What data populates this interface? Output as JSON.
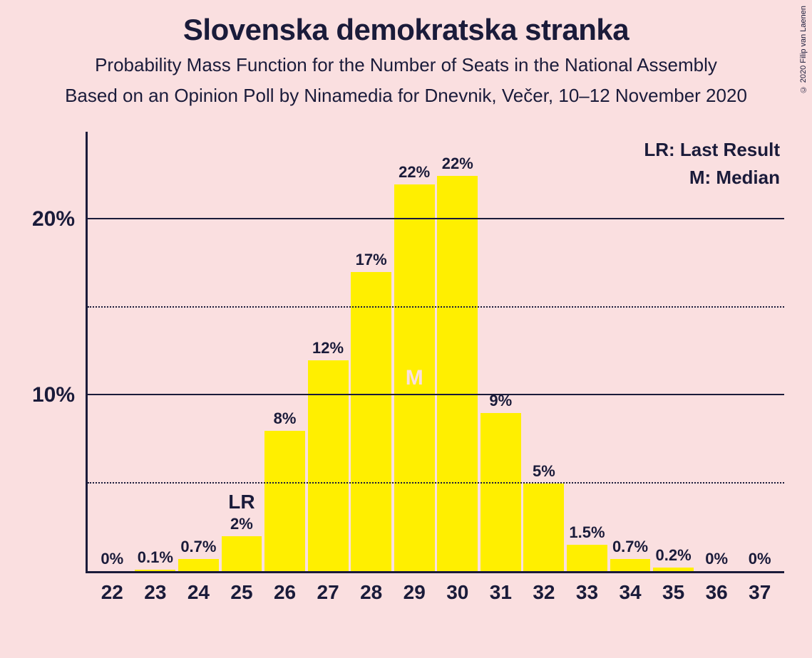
{
  "title": "Slovenska demokratska stranka",
  "subtitle1": "Probability Mass Function for the Number of Seats in the National Assembly",
  "subtitle2": "Based on an Opinion Poll by Ninamedia for Dnevnik, Večer, 10–12 November 2020",
  "copyright": "© 2020 Filip van Laenen",
  "legend": {
    "lr": "LR: Last Result",
    "m": "M: Median"
  },
  "chart": {
    "type": "bar",
    "bar_color": "#ffef00",
    "background": "#fadfe0",
    "axis_color": "#1a1b3a",
    "text_color": "#1a1b3a",
    "median_text_color": "#fadfe0",
    "ymax_pct": 25,
    "ytick_major": [
      10,
      20
    ],
    "ytick_minor": [
      5,
      15
    ],
    "ytick_labels": {
      "10": "10%",
      "20": "20%"
    },
    "lr_marker": {
      "x": 25,
      "label": "LR"
    },
    "median_marker": {
      "x": 29,
      "label": "M"
    },
    "bars": [
      {
        "x": 22,
        "pct": 0,
        "label": "0%"
      },
      {
        "x": 23,
        "pct": 0.1,
        "label": "0.1%"
      },
      {
        "x": 24,
        "pct": 0.7,
        "label": "0.7%"
      },
      {
        "x": 25,
        "pct": 2,
        "label": "2%"
      },
      {
        "x": 26,
        "pct": 8,
        "label": "8%"
      },
      {
        "x": 27,
        "pct": 12,
        "label": "12%"
      },
      {
        "x": 28,
        "pct": 17,
        "label": "17%"
      },
      {
        "x": 29,
        "pct": 22,
        "label": "22%"
      },
      {
        "x": 30,
        "pct": 22.5,
        "label": "22%"
      },
      {
        "x": 31,
        "pct": 9,
        "label": "9%"
      },
      {
        "x": 32,
        "pct": 5,
        "label": "5%"
      },
      {
        "x": 33,
        "pct": 1.5,
        "label": "1.5%"
      },
      {
        "x": 34,
        "pct": 0.7,
        "label": "0.7%"
      },
      {
        "x": 35,
        "pct": 0.2,
        "label": "0.2%"
      },
      {
        "x": 36,
        "pct": 0,
        "label": "0%"
      },
      {
        "x": 37,
        "pct": 0,
        "label": "0%"
      }
    ]
  }
}
